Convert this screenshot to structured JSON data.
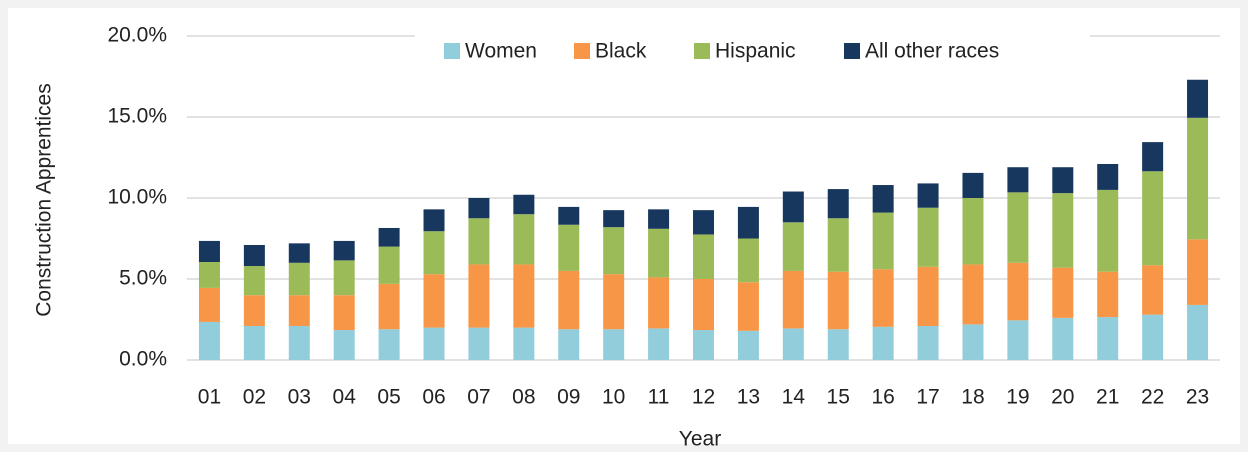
{
  "chart_data": {
    "type": "stacked_bar",
    "x_label": "Year",
    "y_label": "Construction Apprentices",
    "categories": [
      "01",
      "02",
      "03",
      "04",
      "05",
      "06",
      "07",
      "08",
      "09",
      "10",
      "11",
      "12",
      "13",
      "14",
      "15",
      "16",
      "17",
      "18",
      "19",
      "20",
      "21",
      "22",
      "23"
    ],
    "series": [
      {
        "name": "Women",
        "color": "#92cddc",
        "values": [
          2.35,
          2.1,
          2.1,
          1.85,
          1.9,
          2.0,
          2.0,
          2.0,
          1.9,
          1.9,
          1.95,
          1.85,
          1.8,
          1.95,
          1.9,
          2.05,
          2.1,
          2.2,
          2.45,
          2.6,
          2.65,
          2.8,
          3.4
        ]
      },
      {
        "name": "Black",
        "color": "#f79646",
        "values": [
          2.1,
          1.9,
          1.9,
          2.15,
          2.8,
          3.3,
          3.9,
          3.9,
          3.6,
          3.4,
          3.15,
          3.15,
          3.0,
          3.55,
          3.55,
          3.55,
          3.65,
          3.7,
          3.55,
          3.1,
          2.8,
          3.05,
          4.05
        ]
      },
      {
        "name": "Hispanic",
        "color": "#9bbb59",
        "values": [
          1.6,
          1.8,
          2.0,
          2.15,
          2.3,
          2.65,
          2.85,
          3.1,
          2.85,
          2.9,
          3.0,
          2.75,
          2.7,
          3.0,
          3.3,
          3.5,
          3.65,
          4.1,
          4.35,
          4.6,
          5.05,
          5.8,
          7.5
        ]
      },
      {
        "name": "All other races",
        "color": "#17375e",
        "values": [
          1.3,
          1.3,
          1.2,
          1.2,
          1.15,
          1.35,
          1.25,
          1.2,
          1.1,
          1.05,
          1.2,
          1.5,
          1.95,
          1.9,
          1.8,
          1.7,
          1.5,
          1.55,
          1.55,
          1.6,
          1.6,
          1.8,
          2.35
        ]
      }
    ],
    "ylim": [
      0,
      20
    ],
    "yticks": [
      {
        "value": 0,
        "label": "0.0%"
      },
      {
        "value": 5,
        "label": "5.0%"
      },
      {
        "value": 10,
        "label": "10.0%"
      },
      {
        "value": 15,
        "label": "15.0%"
      },
      {
        "value": 20,
        "label": "20.0%"
      }
    ],
    "grid": true,
    "legend": "top"
  }
}
